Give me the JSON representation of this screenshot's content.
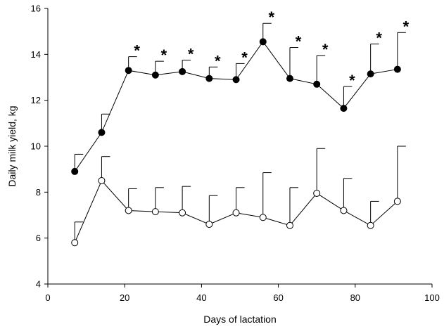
{
  "chart_data": {
    "type": "line",
    "xlabel": "Days of lactation",
    "ylabel": "Daily milk yield, kg",
    "xlim": [
      0,
      100
    ],
    "ylim": [
      4,
      16
    ],
    "x_ticks": [
      0,
      20,
      40,
      60,
      80,
      100
    ],
    "y_ticks": [
      4,
      6,
      8,
      10,
      12,
      14,
      16
    ],
    "grid": false,
    "x": [
      7,
      14,
      21,
      28,
      35,
      42,
      49,
      56,
      63,
      70,
      77,
      84,
      91
    ],
    "series": [
      {
        "marker": "filled-circle",
        "values": [
          8.9,
          10.6,
          13.3,
          13.1,
          13.25,
          12.95,
          12.9,
          14.55,
          12.95,
          12.7,
          11.65,
          13.15,
          13.35
        ],
        "error_upper": [
          9.65,
          11.4,
          13.9,
          13.7,
          13.75,
          13.45,
          13.6,
          15.35,
          14.3,
          13.95,
          12.6,
          14.45,
          14.95
        ],
        "significance": [
          "",
          "",
          "*",
          "*",
          "*",
          "*",
          "*",
          "*",
          "*",
          "*",
          "*",
          "*",
          "*"
        ]
      },
      {
        "marker": "open-circle",
        "values": [
          5.8,
          8.5,
          7.2,
          7.15,
          7.1,
          6.6,
          7.1,
          6.9,
          6.55,
          7.95,
          7.2,
          6.55,
          7.6
        ],
        "error_upper": [
          6.7,
          9.55,
          8.15,
          8.2,
          8.25,
          7.85,
          8.2,
          8.85,
          8.2,
          9.9,
          8.6,
          7.6,
          10.0
        ]
      }
    ]
  }
}
